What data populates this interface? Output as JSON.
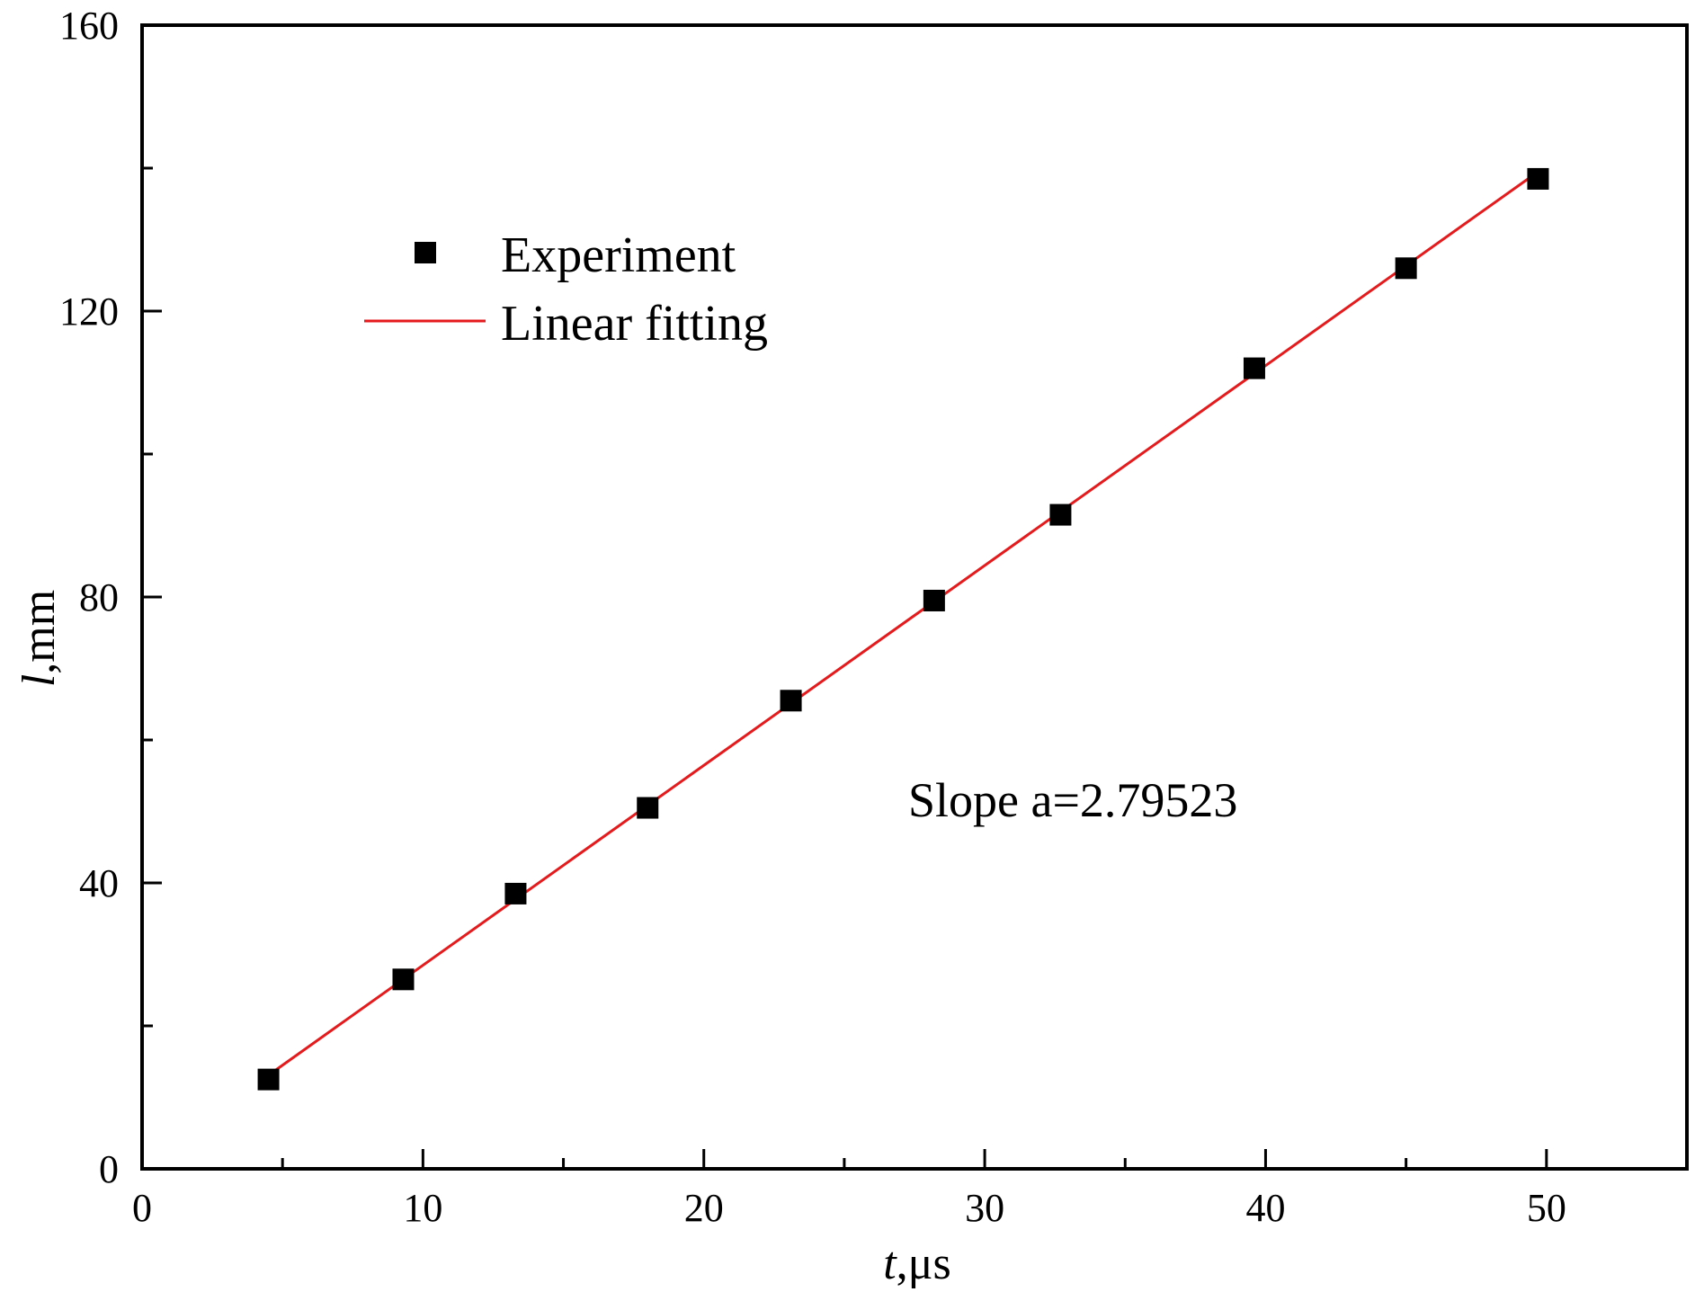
{
  "chart_data": {
    "type": "scatter",
    "xlabel": {
      "var": "t",
      "unit": ",μs"
    },
    "ylabel": {
      "var": "l",
      "unit": ",mm"
    },
    "xlim": [
      0,
      55
    ],
    "ylim": [
      0,
      160
    ],
    "x_ticks": [
      0,
      10,
      20,
      30,
      40,
      50
    ],
    "x_minor_ticks": [
      5,
      15,
      25,
      35,
      45
    ],
    "y_ticks": [
      0,
      40,
      80,
      120,
      160
    ],
    "y_minor_ticks": [
      20,
      60,
      100,
      140
    ],
    "grid": false,
    "legend_position": "upper-left",
    "series": [
      {
        "name": "Experiment",
        "kind": "markers",
        "marker": "square",
        "color": "#000000",
        "x": [
          4.5,
          9.3,
          13.3,
          18.0,
          23.1,
          28.2,
          32.7,
          39.6,
          45.0,
          49.7
        ],
        "y": [
          12.5,
          26.5,
          38.5,
          50.5,
          65.5,
          79.5,
          91.5,
          112.0,
          126.0,
          138.5
        ]
      },
      {
        "name": "Linear fitting",
        "kind": "line",
        "color": "#e41a1c",
        "x": [
          4.5,
          49.7
        ],
        "y": [
          13.1,
          139.5
        ]
      }
    ],
    "annotation": "Slope a=2.79523"
  }
}
